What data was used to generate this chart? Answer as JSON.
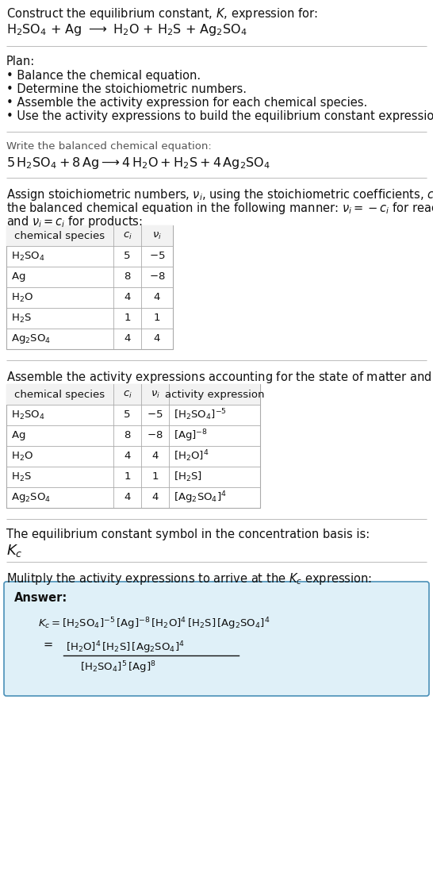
{
  "bg_color": "#ffffff",
  "text_color": "#111111",
  "gray_color": "#555555",
  "table_border": "#aaaaaa",
  "table_header_bg": "#f2f2f2",
  "answer_box_bg": "#dff0f8",
  "answer_box_border": "#4a90b8",
  "separator_color": "#bbbbbb",
  "body_fs": 10.5,
  "small_fs": 9.5,
  "eq_fs": 11.5,
  "kc_fs": 13
}
